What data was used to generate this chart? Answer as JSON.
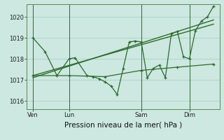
{
  "bg_color": "#cce8e0",
  "grid_color": "#aacfc8",
  "line_color": "#2d6a2d",
  "title": "Pression niveau de la mer( hPa )",
  "ylim": [
    1015.6,
    1020.6
  ],
  "yticks": [
    1016,
    1017,
    1018,
    1019,
    1020
  ],
  "xtick_labels": [
    "Ven",
    "Lun",
    "Sam",
    "Dim"
  ],
  "xtick_positions": [
    0,
    3,
    9,
    13
  ],
  "xlim": [
    -0.5,
    15.5
  ],
  "series1_x": [
    0,
    1,
    2,
    3,
    3.5,
    4.5,
    5,
    5.5,
    6,
    6.5,
    7,
    7.5,
    8,
    8.5,
    9,
    9.5,
    10,
    10.5,
    11,
    11.5,
    12,
    12.5,
    13,
    13.5,
    14,
    14.5,
    15
  ],
  "series1_y": [
    1019.0,
    1018.35,
    1017.2,
    1018.0,
    1018.05,
    1017.2,
    1017.15,
    1017.05,
    1016.9,
    1016.7,
    1016.3,
    1017.55,
    1018.8,
    1018.85,
    1018.8,
    1017.1,
    1017.55,
    1017.7,
    1017.1,
    1019.2,
    1019.3,
    1018.1,
    1018.0,
    1019.35,
    1019.8,
    1020.0,
    1020.5
  ],
  "series2_x": [
    0,
    3,
    6,
    9,
    12,
    15
  ],
  "series2_y": [
    1017.2,
    1017.2,
    1017.15,
    1017.45,
    1017.6,
    1017.75
  ],
  "series3_x": [
    0,
    15
  ],
  "series3_y": [
    1017.1,
    1019.85
  ],
  "series4_x": [
    0,
    15
  ],
  "series4_y": [
    1017.2,
    1019.65
  ],
  "vline_positions": [
    0,
    3,
    9,
    13
  ],
  "ylabel_fontsize": 6.5,
  "tick_fontsize": 6,
  "xlabel_fontsize": 7.5
}
